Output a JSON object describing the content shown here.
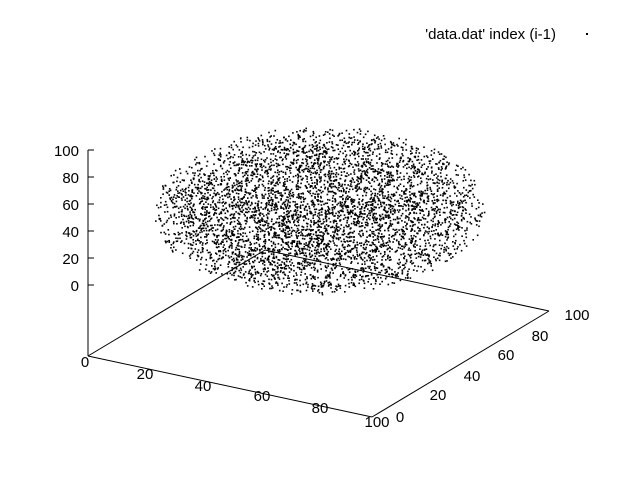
{
  "chart_data": {
    "type": "scatter",
    "plot_style": "3d-points",
    "legend": {
      "label": "'data.dat' index (i-1)",
      "placement": "top-right",
      "marker": "dot"
    },
    "x_axis": {
      "range": [
        0,
        100
      ],
      "ticks": [
        "0",
        "20",
        "40",
        "60",
        "80",
        "100"
      ]
    },
    "y_axis": {
      "range": [
        0,
        100
      ],
      "ticks": [
        "0",
        "20",
        "40",
        "60",
        "80",
        "100"
      ]
    },
    "z_axis": {
      "range": [
        0,
        100
      ],
      "ticks": [
        "0",
        "20",
        "40",
        "60",
        "80",
        "100"
      ]
    },
    "series": [
      {
        "label": "'data.dat' index (i-1)",
        "point_count": 5000,
        "distribution": "uniform random points inside a sphere centered at (50, 50, 50)",
        "center": [
          50,
          50,
          50
        ],
        "radius": 50,
        "color": "#000000"
      }
    ],
    "grid": false
  }
}
